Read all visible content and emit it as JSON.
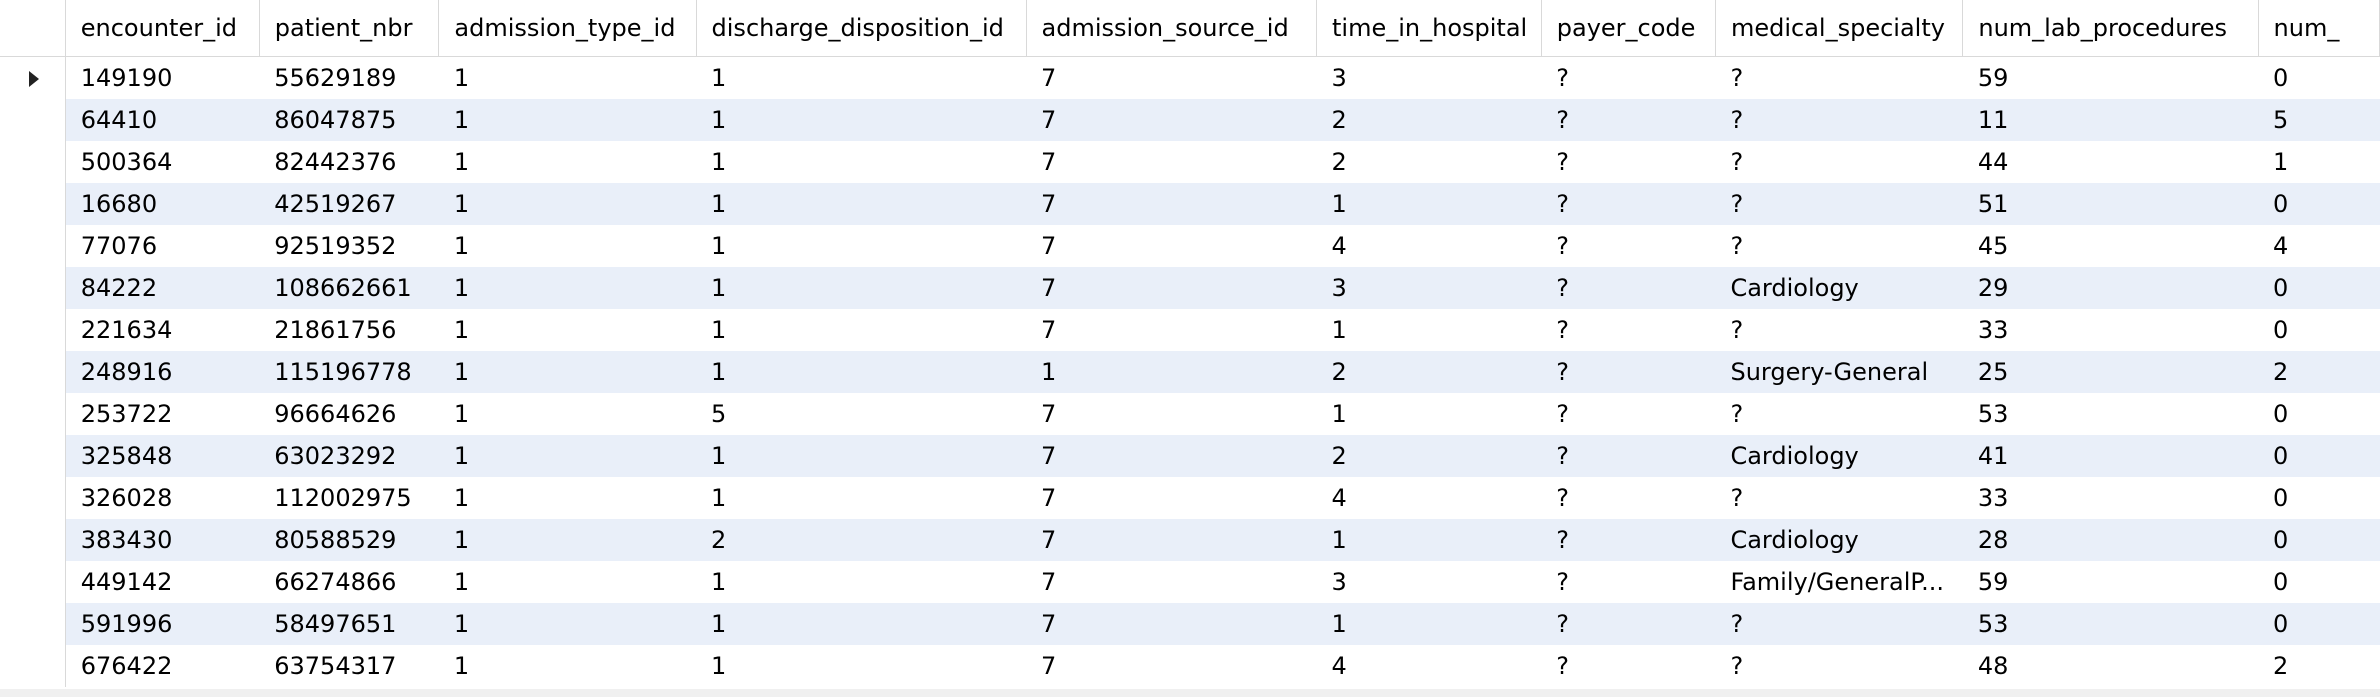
{
  "grid": {
    "columns": [
      "encounter_id",
      "patient_nbr",
      "admission_type_id",
      "discharge_disposition_id",
      "admission_source_id",
      "time_in_hospital",
      "payer_code",
      "medical_specialty",
      "num_lab_procedures",
      "num_"
    ],
    "current_row_marker": "arrow-right",
    "rows": [
      [
        "149190",
        "55629189",
        "1",
        "1",
        "7",
        "3",
        "?",
        "?",
        "59",
        "0"
      ],
      [
        "64410",
        "86047875",
        "1",
        "1",
        "7",
        "2",
        "?",
        "?",
        "11",
        "5"
      ],
      [
        "500364",
        "82442376",
        "1",
        "1",
        "7",
        "2",
        "?",
        "?",
        "44",
        "1"
      ],
      [
        "16680",
        "42519267",
        "1",
        "1",
        "7",
        "1",
        "?",
        "?",
        "51",
        "0"
      ],
      [
        "77076",
        "92519352",
        "1",
        "1",
        "7",
        "4",
        "?",
        "?",
        "45",
        "4"
      ],
      [
        "84222",
        "108662661",
        "1",
        "1",
        "7",
        "3",
        "?",
        "Cardiology",
        "29",
        "0"
      ],
      [
        "221634",
        "21861756",
        "1",
        "1",
        "7",
        "1",
        "?",
        "?",
        "33",
        "0"
      ],
      [
        "248916",
        "115196778",
        "1",
        "1",
        "1",
        "2",
        "?",
        "Surgery-General",
        "25",
        "2"
      ],
      [
        "253722",
        "96664626",
        "1",
        "5",
        "7",
        "1",
        "?",
        "?",
        "53",
        "0"
      ],
      [
        "325848",
        "63023292",
        "1",
        "1",
        "7",
        "2",
        "?",
        "Cardiology",
        "41",
        "0"
      ],
      [
        "326028",
        "112002975",
        "1",
        "1",
        "7",
        "4",
        "?",
        "?",
        "33",
        "0"
      ],
      [
        "383430",
        "80588529",
        "1",
        "2",
        "7",
        "1",
        "?",
        "Cardiology",
        "28",
        "0"
      ],
      [
        "449142",
        "66274866",
        "1",
        "1",
        "7",
        "3",
        "?",
        "Family/GeneralP...",
        "59",
        "0"
      ],
      [
        "591996",
        "58497651",
        "1",
        "1",
        "7",
        "1",
        "?",
        "?",
        "53",
        "0"
      ],
      [
        "676422",
        "63754317",
        "1",
        "1",
        "7",
        "4",
        "?",
        "?",
        "48",
        "2"
      ]
    ]
  }
}
